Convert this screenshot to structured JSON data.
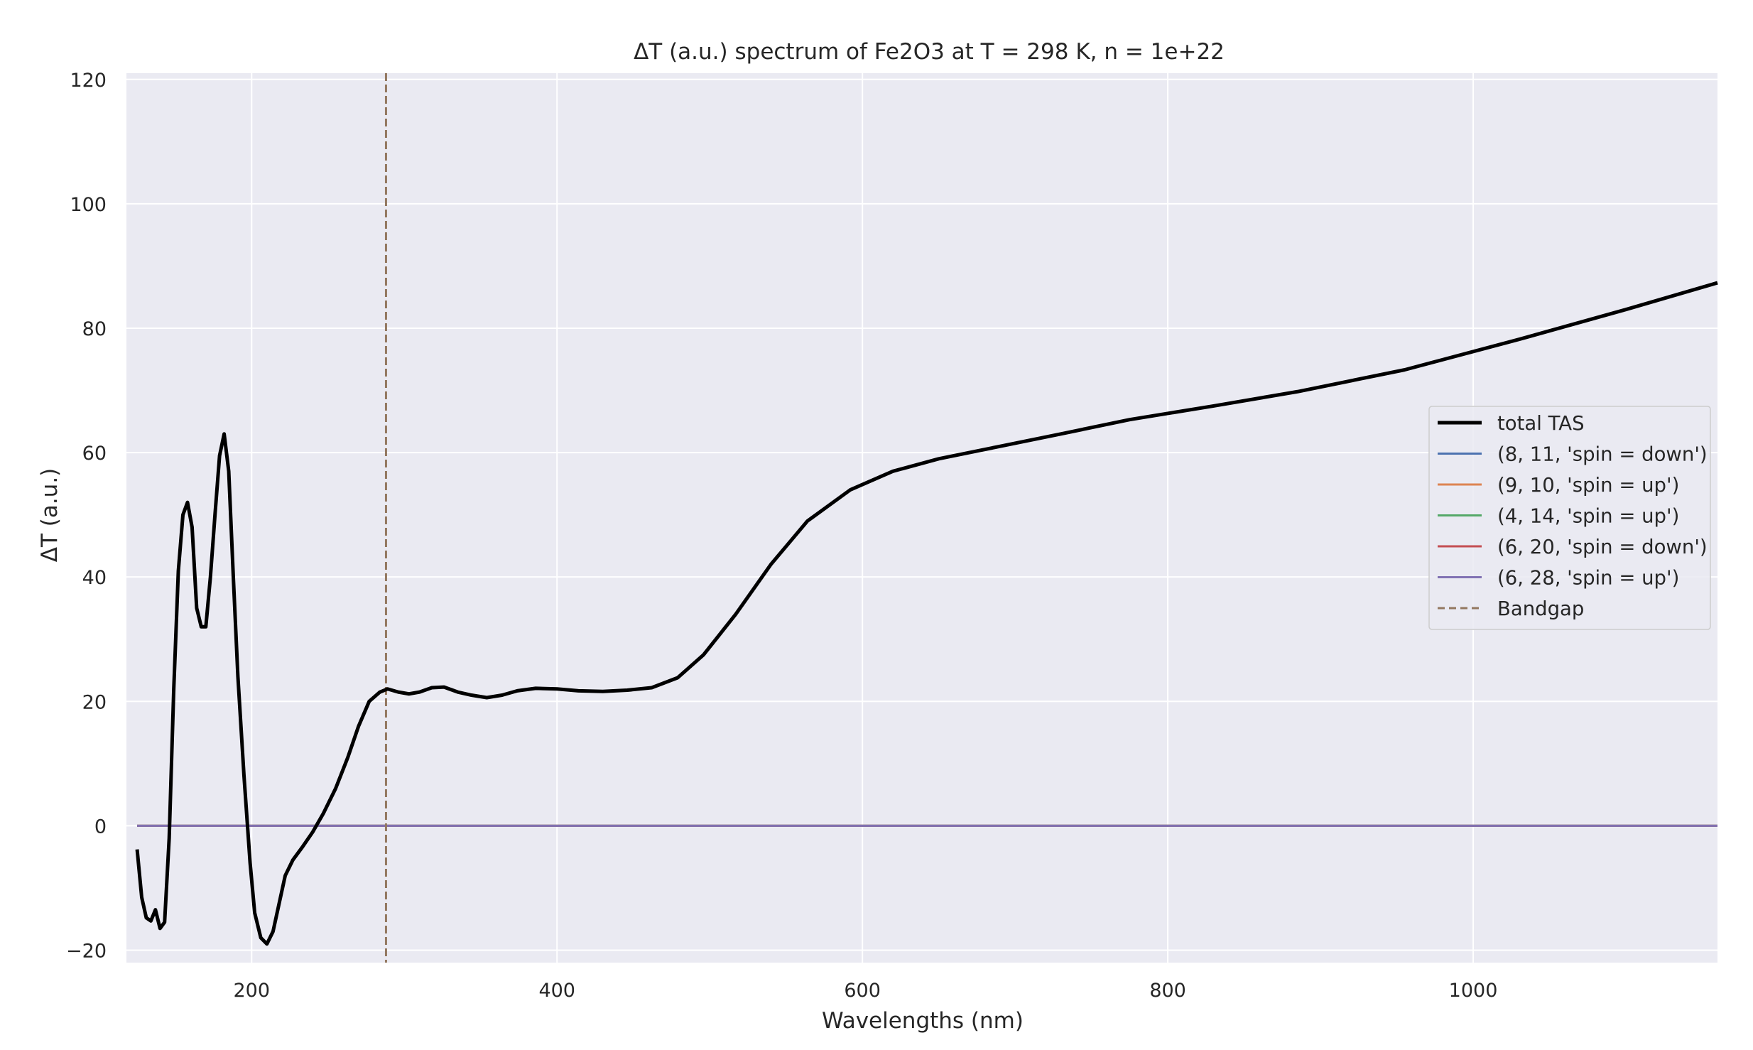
{
  "chart_data": {
    "type": "line",
    "title": "ΔT (a.u.) spectrum of Fe2O3 at T = 298 K, n = 1e+22",
    "xlabel": "Wavelengths (nm)",
    "ylabel": "ΔT (a.u.)",
    "xlim": [
      118,
      1160
    ],
    "ylim": [
      -22,
      121
    ],
    "xticks": [
      200,
      400,
      600,
      800,
      1000
    ],
    "yticks": [
      -20,
      0,
      20,
      40,
      60,
      80,
      100,
      120
    ],
    "xtick_labels": [
      "200",
      "400",
      "600",
      "800",
      "1000"
    ],
    "ytick_labels": [
      "−20",
      "0",
      "20",
      "40",
      "60",
      "80",
      "100",
      "120"
    ],
    "grid": true,
    "background": "#eaeaf2",
    "legend_position": "center right",
    "series": [
      {
        "name": "total TAS",
        "color": "#000000",
        "style": "solid",
        "x": [
          125,
          128,
          131,
          134,
          137,
          140,
          143,
          146,
          149,
          152,
          155,
          158,
          161,
          164,
          167,
          170,
          173,
          176,
          179,
          182,
          185,
          188,
          191,
          195,
          199,
          202,
          206,
          210,
          214,
          218,
          222,
          227,
          233,
          240,
          247,
          255,
          263,
          270,
          277,
          284,
          289,
          296,
          303,
          310,
          318,
          326,
          335,
          344,
          354,
          364,
          374,
          386,
          400,
          414,
          430,
          446,
          462,
          479,
          496,
          517,
          540,
          564,
          592,
          620,
          650,
          690,
          730,
          775,
          830,
          885,
          955,
          1030,
          1100,
          1160
        ],
        "y": [
          -3.8,
          -11.5,
          -14.8,
          -15.3,
          -13.5,
          -16.5,
          -15.5,
          -2,
          22,
          41,
          50,
          52,
          48,
          35,
          32,
          32,
          40,
          50,
          59.5,
          63,
          57,
          40,
          24,
          8,
          -6,
          -14,
          -18,
          -19,
          -17,
          -12.5,
          -8,
          -5.5,
          -3.5,
          -1,
          2,
          6,
          11,
          16,
          20,
          21.5,
          22,
          21.5,
          21.2,
          21.5,
          22.2,
          22.3,
          21.5,
          21,
          20.6,
          21,
          21.7,
          22.1,
          22,
          21.7,
          21.6,
          21.8,
          22.2,
          23.8,
          27.5,
          34,
          42,
          49,
          54,
          57,
          59,
          61,
          63,
          65.3,
          67.5,
          69.8,
          73.3,
          78.2,
          83,
          87.3
        ]
      },
      {
        "name": "(8, 11, 'spin = down')",
        "color": "#4c72b0",
        "style": "solid",
        "x": [
          125,
          1160
        ],
        "y": [
          0,
          0
        ]
      },
      {
        "name": "(9, 10, 'spin = up')",
        "color": "#dd8452",
        "style": "solid",
        "x": [
          125,
          1160
        ],
        "y": [
          0,
          0
        ]
      },
      {
        "name": "(4, 14, 'spin = up')",
        "color": "#55a868",
        "style": "solid",
        "x": [
          125,
          1160
        ],
        "y": [
          0,
          0
        ]
      },
      {
        "name": "(6, 20, 'spin = down')",
        "color": "#c44e52",
        "style": "solid",
        "x": [
          125,
          1160
        ],
        "y": [
          0,
          0
        ]
      },
      {
        "name": "(6, 28, 'spin = up')",
        "color": "#8172b3",
        "style": "solid",
        "x": [
          125,
          1160
        ],
        "y": [
          0,
          0
        ]
      }
    ],
    "bandgap": {
      "name": "Bandgap",
      "x": 288,
      "color": "#937860",
      "style": "dashed"
    }
  }
}
